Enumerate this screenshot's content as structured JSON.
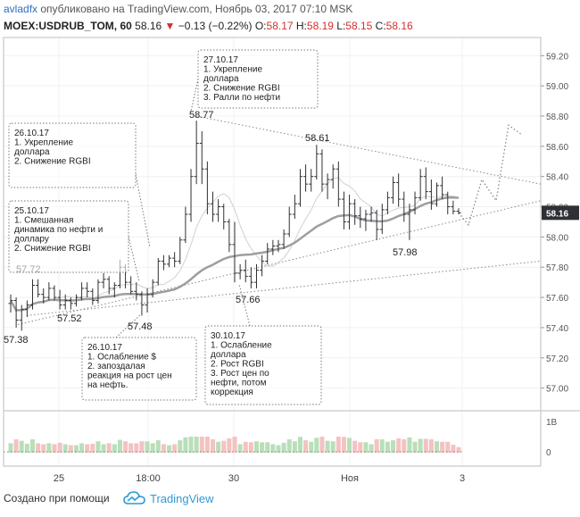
{
  "header": {
    "user": "avladfx",
    "published": "опубликовано на TradingView.com, Ноябрь 03, 2017 07:10 MSK",
    "symbol": "MOEX:USDRUB_TOM, 60",
    "last": "58.16",
    "change": "−0.13 (−0.22%)",
    "open_label": "O:",
    "open": "58.17",
    "high_label": "H:",
    "high": "58.19",
    "low_label": "L:",
    "low": "58.15",
    "close_label": "C:",
    "close": "58.16"
  },
  "footer": {
    "created_with": "Создано при помощи",
    "brand": "TradingView"
  },
  "colors": {
    "up": "#2f3035",
    "down": "#2f3035",
    "ma_thick": "#9e9e9e",
    "ma_thin": "#d0d0d0",
    "price_badge": "#2f3035",
    "accent_red": "#d32f2f",
    "brand": "#2f9ad6"
  },
  "chart_data": {
    "type": "candlestick",
    "symbol": "MOEX:USDRUB_TOM",
    "interval": "60",
    "ylim": [
      56.85,
      59.32
    ],
    "y_ticks": [
      "59.20",
      "59.00",
      "58.80",
      "58.60",
      "58.40",
      "58.20",
      "58.00",
      "57.80",
      "57.60",
      "57.40",
      "57.20",
      "57.00"
    ],
    "current_price": "58.16",
    "x_ticks": [
      "25",
      "18:00",
      "30",
      "Ноя",
      "3"
    ],
    "volume_ticks": [
      "1B",
      "0"
    ],
    "price_labels": [
      {
        "text": "58.77",
        "value": 58.77
      },
      {
        "text": "58.61",
        "value": 58.61
      },
      {
        "text": "57.72",
        "value": 57.72
      },
      {
        "text": "57.52",
        "value": 57.52
      },
      {
        "text": "57.48",
        "value": 57.48
      },
      {
        "text": "57.38",
        "value": 57.38
      },
      {
        "text": "57.66",
        "value": 57.66
      },
      {
        "text": "57.98",
        "value": 57.98
      }
    ],
    "annotations": [
      {
        "date": "27.10.17",
        "lines": [
          "1. Укрепление",
          "доллара",
          "2. Снижение RGBI",
          "3. Ралли по нефти"
        ]
      },
      {
        "date": "26.10.17",
        "lines": [
          "1. Укрепление",
          "доллара",
          "2. Снижение RGBI"
        ]
      },
      {
        "date": "25.10.17",
        "lines": [
          "1. Смешанная",
          "динамика по нефти и",
          "доллару",
          "2. Снижение RGBI"
        ]
      },
      {
        "date": "26.10.17",
        "lines": [
          "1. Ослабление $",
          "2. запоздалая",
          "реакция на рост цен",
          "на нефть."
        ]
      },
      {
        "date": "30.10.17",
        "lines": [
          "1. Ослабление",
          "доллара",
          "2. Рост RGBI",
          "3. Рост цен по",
          "нефти, потом",
          "коррекция"
        ]
      }
    ],
    "ohlc": [
      [
        57.56,
        57.62,
        57.5,
        57.58
      ],
      [
        57.58,
        57.6,
        57.4,
        57.45
      ],
      [
        57.45,
        57.55,
        57.38,
        57.52
      ],
      [
        57.52,
        57.58,
        57.47,
        57.55
      ],
      [
        57.55,
        57.72,
        57.52,
        57.68
      ],
      [
        57.68,
        57.72,
        57.6,
        57.62
      ],
      [
        57.62,
        57.66,
        57.56,
        57.6
      ],
      [
        57.6,
        57.7,
        57.58,
        57.66
      ],
      [
        57.66,
        57.68,
        57.58,
        57.6
      ],
      [
        57.6,
        57.65,
        57.52,
        57.55
      ],
      [
        57.55,
        57.62,
        57.52,
        57.58
      ],
      [
        57.58,
        57.6,
        57.52,
        57.56
      ],
      [
        57.56,
        57.62,
        57.54,
        57.6
      ],
      [
        57.6,
        57.7,
        57.58,
        57.66
      ],
      [
        57.66,
        57.7,
        57.6,
        57.64
      ],
      [
        57.64,
        57.66,
        57.55,
        57.58
      ],
      [
        57.58,
        57.72,
        57.56,
        57.7
      ],
      [
        57.7,
        57.76,
        57.66,
        57.72
      ],
      [
        57.72,
        57.74,
        57.62,
        57.66
      ],
      [
        57.66,
        57.7,
        57.6,
        57.68
      ],
      [
        57.68,
        57.85,
        57.66,
        57.8
      ],
      [
        57.8,
        57.82,
        57.66,
        57.7
      ],
      [
        57.7,
        57.74,
        57.62,
        57.64
      ],
      [
        57.64,
        57.7,
        57.58,
        57.62
      ],
      [
        57.62,
        57.64,
        57.48,
        57.55
      ],
      [
        57.55,
        57.66,
        57.5,
        57.62
      ],
      [
        57.62,
        57.72,
        57.6,
        57.7
      ],
      [
        57.7,
        57.86,
        57.68,
        57.84
      ],
      [
        57.84,
        57.88,
        57.78,
        57.82
      ],
      [
        57.82,
        57.88,
        57.8,
        57.86
      ],
      [
        57.86,
        57.9,
        57.8,
        57.84
      ],
      [
        57.84,
        58.0,
        57.82,
        57.98
      ],
      [
        57.98,
        58.2,
        57.96,
        58.15
      ],
      [
        58.15,
        58.45,
        58.1,
        58.4
      ],
      [
        58.4,
        58.77,
        58.35,
        58.62
      ],
      [
        58.62,
        58.7,
        58.35,
        58.45
      ],
      [
        58.45,
        58.5,
        58.15,
        58.22
      ],
      [
        58.22,
        58.3,
        58.1,
        58.15
      ],
      [
        58.15,
        58.25,
        58.1,
        58.2
      ],
      [
        58.2,
        58.22,
        58.05,
        58.1
      ],
      [
        58.1,
        58.12,
        57.9,
        57.95
      ],
      [
        57.95,
        58.1,
        57.7,
        57.76
      ],
      [
        57.76,
        57.82,
        57.72,
        57.78
      ],
      [
        57.78,
        57.85,
        57.7,
        57.74
      ],
      [
        57.74,
        57.8,
        57.66,
        57.7
      ],
      [
        57.7,
        57.82,
        57.66,
        57.78
      ],
      [
        57.78,
        57.88,
        57.74,
        57.84
      ],
      [
        57.84,
        57.96,
        57.82,
        57.92
      ],
      [
        57.92,
        57.98,
        57.88,
        57.94
      ],
      [
        57.94,
        57.98,
        57.9,
        57.95
      ],
      [
        57.95,
        58.05,
        57.92,
        58.02
      ],
      [
        58.02,
        58.2,
        58.0,
        58.15
      ],
      [
        58.15,
        58.28,
        58.12,
        58.22
      ],
      [
        58.22,
        58.45,
        58.2,
        58.4
      ],
      [
        58.4,
        58.48,
        58.3,
        58.35
      ],
      [
        58.35,
        58.45,
        58.3,
        58.4
      ],
      [
        58.4,
        58.61,
        58.38,
        58.55
      ],
      [
        58.55,
        58.58,
        58.3,
        58.35
      ],
      [
        58.35,
        58.42,
        58.25,
        58.38
      ],
      [
        58.38,
        58.48,
        58.32,
        58.45
      ],
      [
        58.45,
        58.5,
        58.2,
        58.25
      ],
      [
        58.25,
        58.3,
        58.05,
        58.1
      ],
      [
        58.1,
        58.28,
        58.05,
        58.22
      ],
      [
        58.22,
        58.25,
        58.08,
        58.14
      ],
      [
        58.14,
        58.2,
        58.06,
        58.12
      ],
      [
        58.12,
        58.18,
        58.04,
        58.15
      ],
      [
        58.15,
        58.2,
        58.1,
        58.16
      ],
      [
        58.16,
        58.18,
        57.98,
        58.05
      ],
      [
        58.05,
        58.22,
        58.02,
        58.18
      ],
      [
        58.18,
        58.3,
        58.15,
        58.26
      ],
      [
        58.26,
        58.4,
        58.22,
        58.36
      ],
      [
        58.36,
        58.42,
        58.2,
        58.25
      ],
      [
        58.25,
        58.3,
        58.1,
        58.15
      ],
      [
        58.15,
        58.22,
        57.98,
        58.18
      ],
      [
        58.18,
        58.3,
        58.15,
        58.26
      ],
      [
        58.26,
        58.45,
        58.24,
        58.4
      ],
      [
        58.4,
        58.46,
        58.25,
        58.3
      ],
      [
        58.3,
        58.38,
        58.18,
        58.22
      ],
      [
        58.22,
        58.36,
        58.2,
        58.34
      ],
      [
        58.34,
        58.4,
        58.25,
        58.28
      ],
      [
        58.28,
        58.3,
        58.15,
        58.2
      ],
      [
        58.2,
        58.24,
        58.15,
        58.17
      ],
      [
        58.17,
        58.19,
        58.15,
        58.16
      ]
    ],
    "volume_scale": [
      1,
      0
    ]
  }
}
